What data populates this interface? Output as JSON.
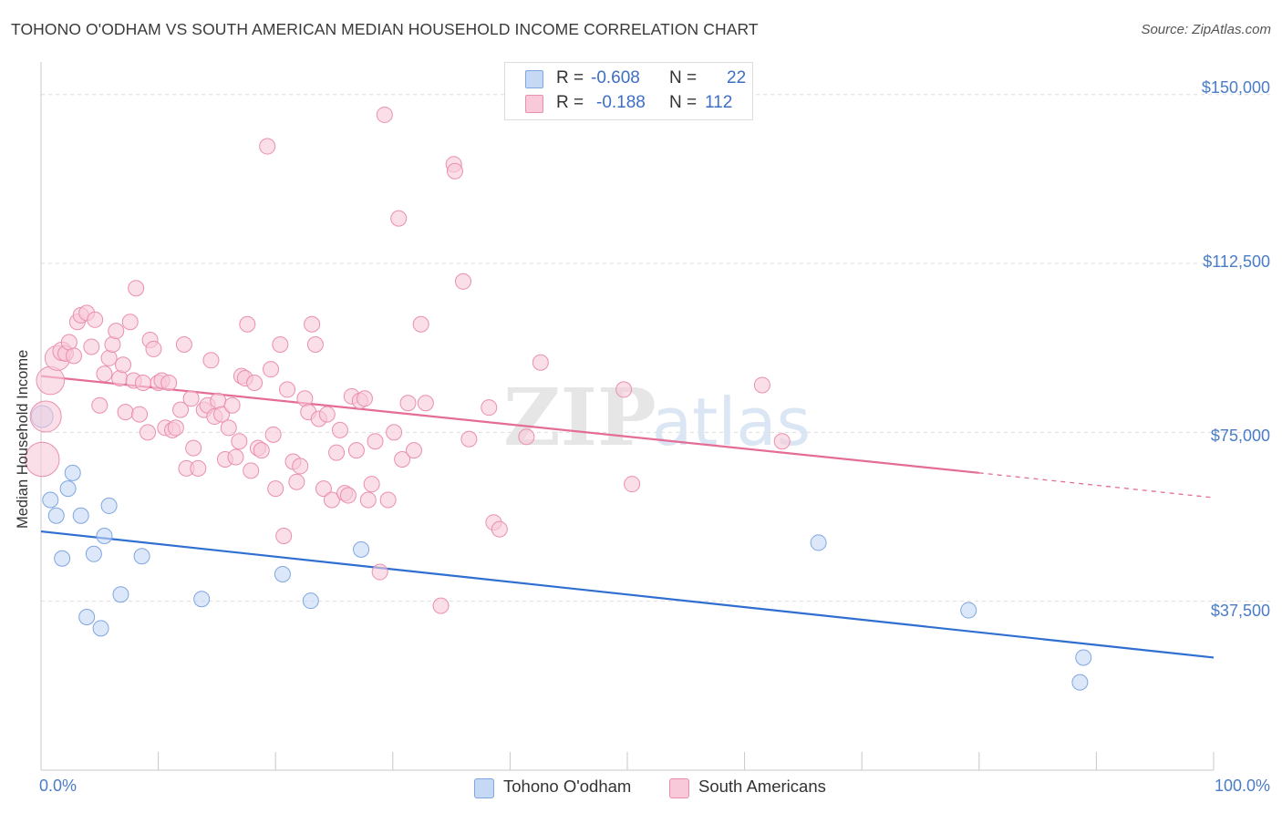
{
  "title": "TOHONO O'ODHAM VS SOUTH AMERICAN MEDIAN HOUSEHOLD INCOME CORRELATION CHART",
  "source": "Source: ZipAtlas.com",
  "watermark": {
    "zip": "ZIP",
    "atlas": "atlas"
  },
  "colors": {
    "blue_fill": "#c5d9f5",
    "blue_stroke": "#7ea6e0",
    "blue_line": "#2f6fd1",
    "pink_fill": "#f8c9d8",
    "pink_stroke": "#ea8fae",
    "pink_line": "#e46c97",
    "tick_text": "#4a7cc7",
    "grid": "#dddddd"
  },
  "legend": {
    "rows": [
      {
        "r_label": "R =",
        "r_value": "-0.608",
        "n_label": "N =",
        "n_value": "22"
      },
      {
        "r_label": "R =",
        "r_value": "-0.188",
        "n_label": "N =",
        "n_value": "112"
      }
    ]
  },
  "bottom_legend": {
    "series1": "Tohono O'odham",
    "series2": "South Americans"
  },
  "chart_data": {
    "type": "scatter",
    "title": "TOHONO O'ODHAM VS SOUTH AMERICAN MEDIAN HOUSEHOLD INCOME CORRELATION CHART",
    "xlabel": "",
    "ylabel": "Median Household Income",
    "xlim": [
      0,
      100
    ],
    "ylim": [
      0,
      155000
    ],
    "x_tick_labels": [
      "0.0%",
      "100.0%"
    ],
    "y_ticks": [
      37500,
      75000,
      112500,
      150000
    ],
    "y_tick_labels": [
      "$37,500",
      "$75,000",
      "$112,500",
      "$150,000"
    ],
    "grid": true,
    "series": [
      {
        "name": "Tohono O'odham",
        "color": "blue",
        "r": -0.608,
        "n": 22,
        "trend": {
          "x0": 0,
          "y0": 53000,
          "x1": 100,
          "y1": 25000
        },
        "points": [
          [
            0.1,
            78500,
            1.4
          ],
          [
            0.8,
            60000,
            1
          ],
          [
            1.3,
            56500,
            1
          ],
          [
            1.8,
            47000,
            1
          ],
          [
            2.3,
            62500,
            1
          ],
          [
            2.7,
            66000,
            1
          ],
          [
            3.4,
            56500,
            1
          ],
          [
            3.9,
            34000,
            1
          ],
          [
            4.5,
            48000,
            1
          ],
          [
            5.1,
            31500,
            1
          ],
          [
            5.4,
            52000,
            1
          ],
          [
            5.8,
            58700,
            1
          ],
          [
            6.8,
            39000,
            1
          ],
          [
            8.6,
            47500,
            1
          ],
          [
            13.7,
            38000,
            1
          ],
          [
            20.6,
            43500,
            1
          ],
          [
            23.0,
            37600,
            1
          ],
          [
            27.3,
            49000,
            1
          ],
          [
            66.3,
            50500,
            1
          ],
          [
            79.1,
            35500,
            1
          ],
          [
            88.9,
            25000,
            1
          ],
          [
            88.6,
            19500,
            1
          ]
        ]
      },
      {
        "name": "South Americans",
        "color": "pink",
        "r": -0.188,
        "n": 112,
        "trend": {
          "x0": 0,
          "y0": 87500,
          "x1": 80,
          "y1": 66000
        },
        "trend_dashed": {
          "x0": 80,
          "y0": 66000,
          "x1": 100,
          "y1": 60500
        },
        "points": [
          [
            0.1,
            69000,
            2.2
          ],
          [
            0.4,
            78500,
            2.0
          ],
          [
            0.8,
            86500,
            1.8
          ],
          [
            1.4,
            91500,
            1.6
          ],
          [
            1.8,
            93000,
            1.2
          ],
          [
            2.1,
            92500,
            1
          ],
          [
            2.4,
            95000,
            1
          ],
          [
            2.8,
            92000,
            1
          ],
          [
            3.1,
            99500,
            1
          ],
          [
            3.4,
            101000,
            1
          ],
          [
            3.9,
            101500,
            1
          ],
          [
            4.3,
            94000,
            1
          ],
          [
            4.6,
            100000,
            1
          ],
          [
            5.0,
            81000,
            1
          ],
          [
            5.4,
            88000,
            1
          ],
          [
            5.8,
            91500,
            1
          ],
          [
            6.1,
            94500,
            1
          ],
          [
            6.4,
            97500,
            1
          ],
          [
            6.7,
            87000,
            1
          ],
          [
            7.0,
            90000,
            1
          ],
          [
            7.2,
            79500,
            1
          ],
          [
            7.6,
            99500,
            1
          ],
          [
            7.9,
            86500,
            1
          ],
          [
            8.1,
            107000,
            1
          ],
          [
            8.4,
            79000,
            1
          ],
          [
            8.7,
            86000,
            1
          ],
          [
            9.1,
            75000,
            1
          ],
          [
            9.3,
            95500,
            1
          ],
          [
            9.6,
            93500,
            1
          ],
          [
            10.0,
            86000,
            1
          ],
          [
            10.3,
            86500,
            1
          ],
          [
            10.6,
            76000,
            1
          ],
          [
            10.9,
            86000,
            1
          ],
          [
            11.2,
            75500,
            1
          ],
          [
            11.5,
            76000,
            1
          ],
          [
            11.9,
            80000,
            1
          ],
          [
            12.2,
            94500,
            1
          ],
          [
            12.4,
            67000,
            1
          ],
          [
            12.8,
            82500,
            1
          ],
          [
            13.0,
            71500,
            1
          ],
          [
            13.4,
            67000,
            1
          ],
          [
            13.9,
            80000,
            1
          ],
          [
            14.2,
            81000,
            1
          ],
          [
            14.5,
            91000,
            1
          ],
          [
            14.8,
            78500,
            1
          ],
          [
            15.1,
            82000,
            1
          ],
          [
            15.4,
            79000,
            1
          ],
          [
            15.7,
            69000,
            1
          ],
          [
            16.0,
            76000,
            1
          ],
          [
            16.3,
            81000,
            1
          ],
          [
            16.6,
            69500,
            1
          ],
          [
            16.9,
            73000,
            1
          ],
          [
            17.1,
            87500,
            1
          ],
          [
            17.4,
            87000,
            1
          ],
          [
            17.6,
            99000,
            1
          ],
          [
            17.9,
            66500,
            1
          ],
          [
            18.2,
            86000,
            1
          ],
          [
            18.5,
            71500,
            1
          ],
          [
            18.8,
            71000,
            1
          ],
          [
            19.3,
            138500,
            1
          ],
          [
            19.6,
            89000,
            1
          ],
          [
            19.8,
            74500,
            1
          ],
          [
            20.0,
            62500,
            1
          ],
          [
            20.4,
            94500,
            1
          ],
          [
            20.7,
            52000,
            1
          ],
          [
            21.0,
            84500,
            1
          ],
          [
            21.5,
            68500,
            1
          ],
          [
            21.8,
            64000,
            1
          ],
          [
            22.1,
            67500,
            1
          ],
          [
            22.5,
            82500,
            1
          ],
          [
            22.8,
            79500,
            1
          ],
          [
            23.1,
            99000,
            1
          ],
          [
            23.4,
            94500,
            1
          ],
          [
            23.7,
            78000,
            1
          ],
          [
            24.1,
            62500,
            1
          ],
          [
            24.4,
            79000,
            1
          ],
          [
            24.8,
            60000,
            1
          ],
          [
            25.2,
            70500,
            1
          ],
          [
            25.5,
            75500,
            1
          ],
          [
            25.9,
            61500,
            1
          ],
          [
            26.2,
            61000,
            1
          ],
          [
            26.5,
            83000,
            1
          ],
          [
            26.9,
            71000,
            1
          ],
          [
            27.2,
            82000,
            1
          ],
          [
            27.6,
            82500,
            1
          ],
          [
            27.9,
            60000,
            1
          ],
          [
            28.2,
            63500,
            1
          ],
          [
            28.5,
            73000,
            1
          ],
          [
            28.9,
            44000,
            1
          ],
          [
            29.3,
            145500,
            1
          ],
          [
            29.6,
            60000,
            1
          ],
          [
            30.1,
            75000,
            1
          ],
          [
            30.5,
            122500,
            1
          ],
          [
            30.8,
            69000,
            1
          ],
          [
            31.3,
            81500,
            1
          ],
          [
            31.8,
            71000,
            1
          ],
          [
            32.4,
            99000,
            1
          ],
          [
            32.8,
            81500,
            1
          ],
          [
            34.1,
            36500,
            1
          ],
          [
            35.2,
            134500,
            1
          ],
          [
            35.3,
            133000,
            1
          ],
          [
            36.0,
            108500,
            1
          ],
          [
            36.5,
            73500,
            1
          ],
          [
            38.2,
            80500,
            1
          ],
          [
            38.6,
            55000,
            1
          ],
          [
            39.1,
            53500,
            1
          ],
          [
            41.4,
            74000,
            1
          ],
          [
            42.6,
            90500,
            1
          ],
          [
            49.7,
            84500,
            1
          ],
          [
            50.4,
            63500,
            1
          ],
          [
            61.5,
            85500,
            1
          ],
          [
            63.2,
            73000,
            1
          ]
        ]
      }
    ]
  }
}
